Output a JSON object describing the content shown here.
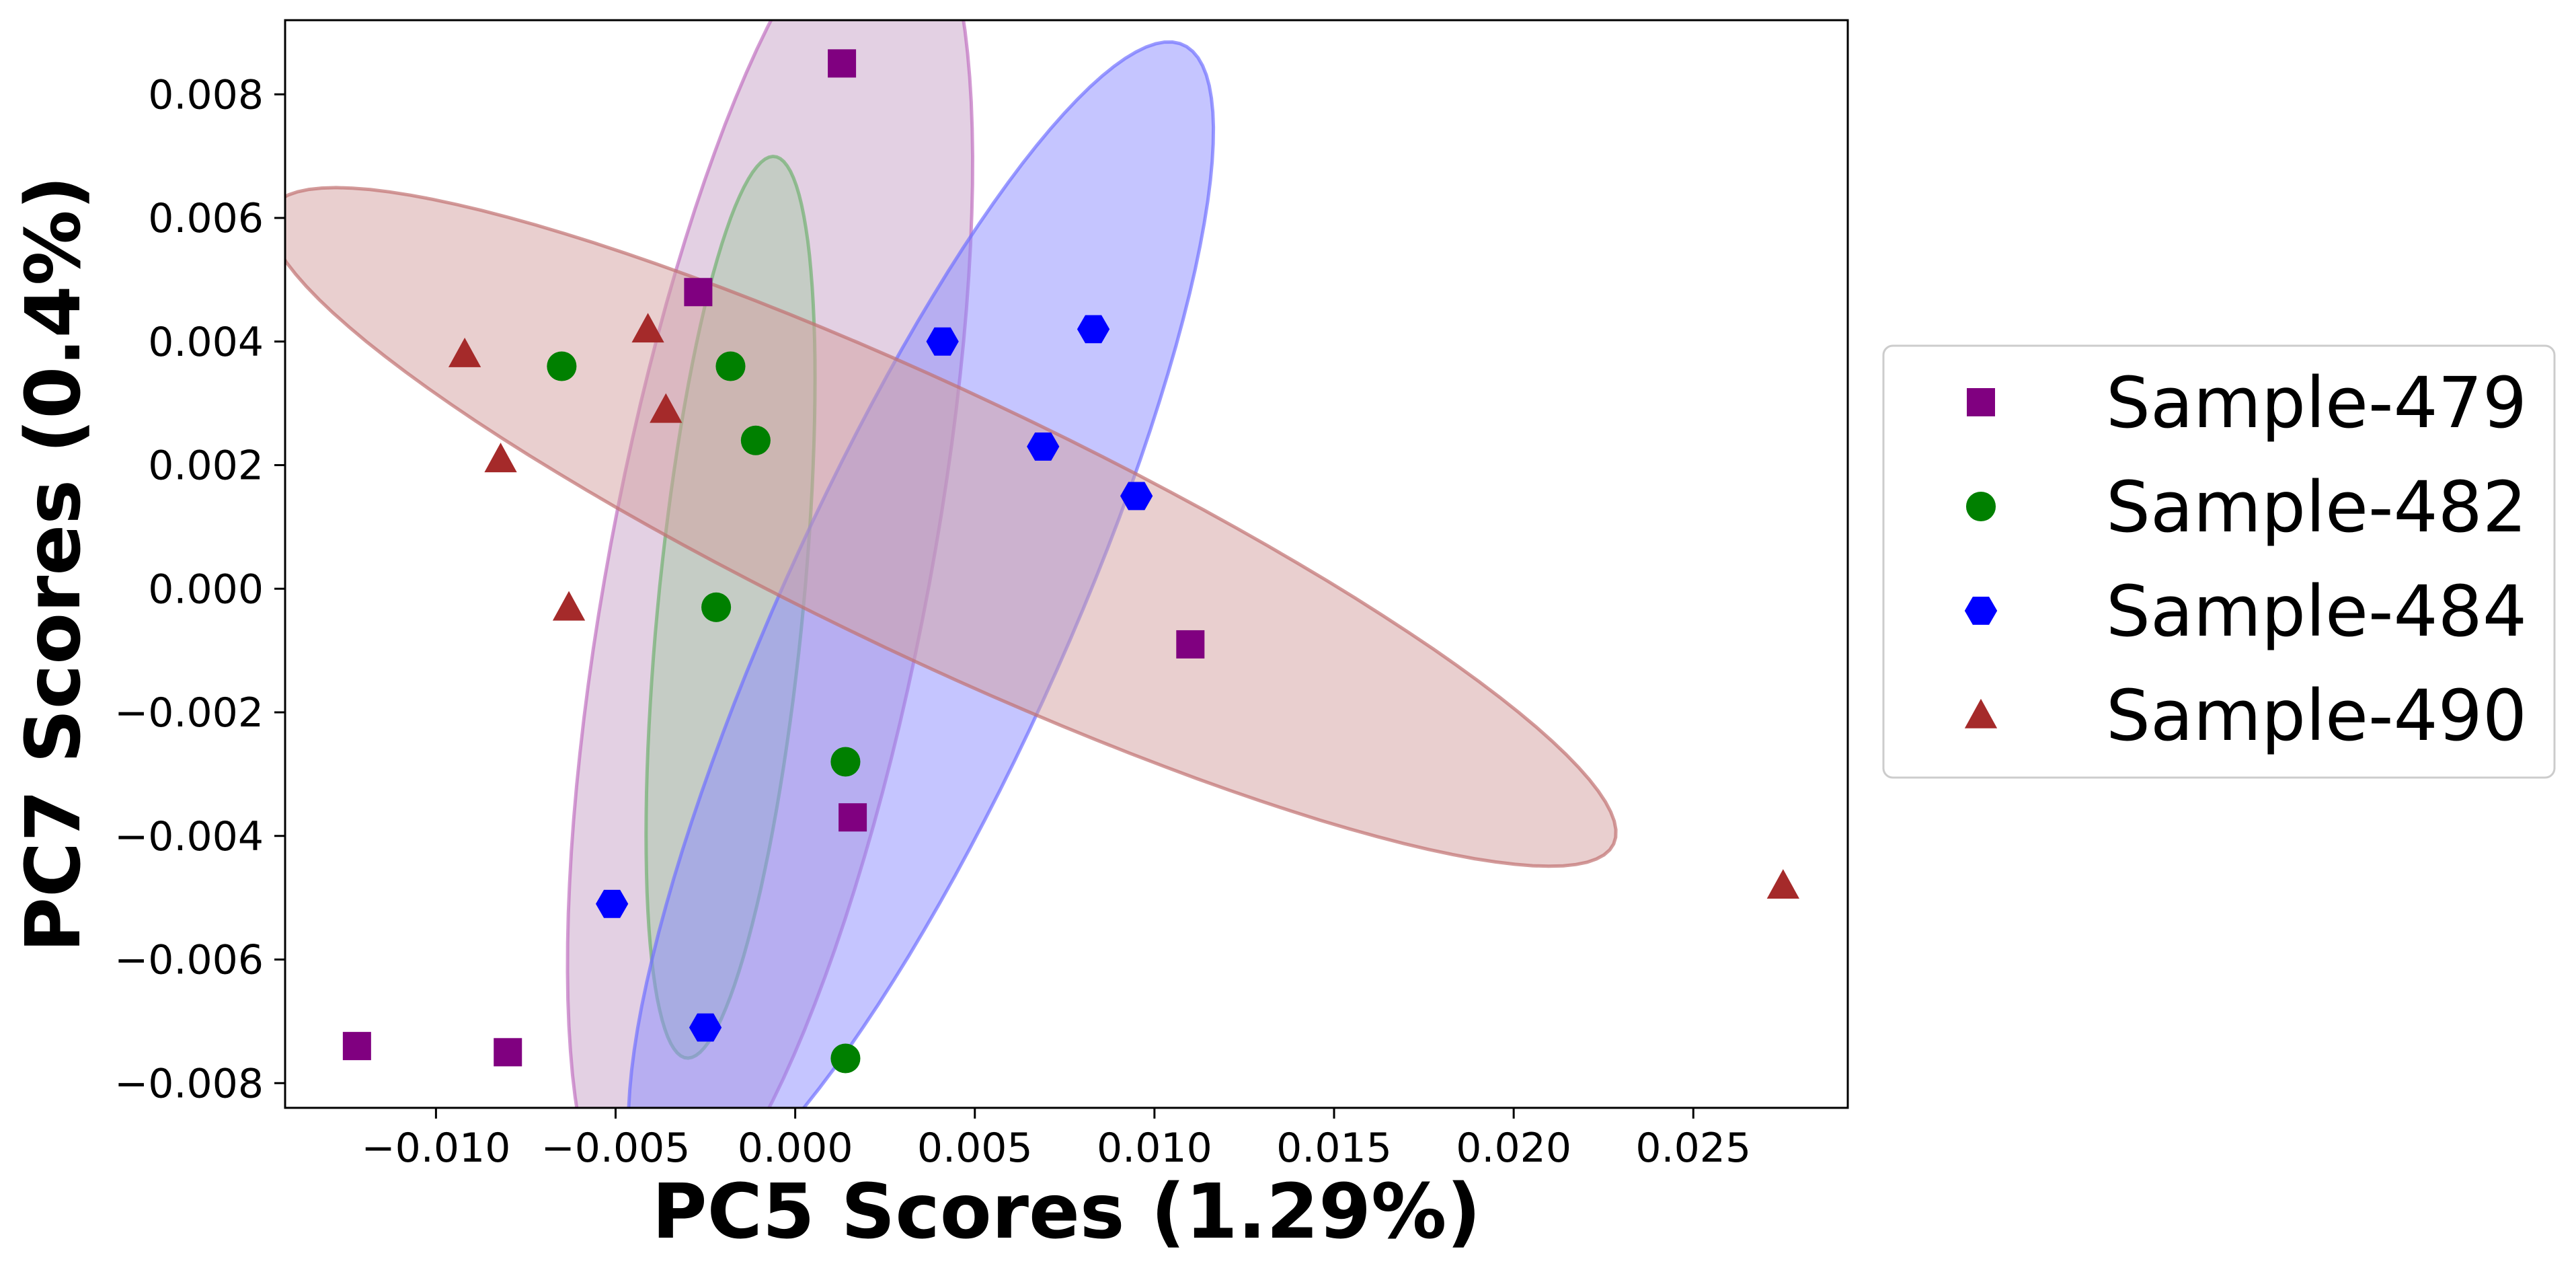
{
  "chart_data": {
    "type": "scatter",
    "title": "",
    "xlabel": "PC5 Scores (1.29%)",
    "ylabel": "PC7 Scores (0.4%)",
    "xlim": [
      -0.0142,
      0.0293
    ],
    "ylim": [
      -0.0084,
      0.0092
    ],
    "grid": false,
    "legend_position": "center-right, outside plot",
    "x_ticks": [
      -0.01,
      -0.005,
      0.0,
      0.005,
      0.01,
      0.015,
      0.02,
      0.025
    ],
    "x_tick_labels": [
      "−0.010",
      "−0.005",
      "0.000",
      "0.005",
      "0.010",
      "0.015",
      "0.020",
      "0.025"
    ],
    "y_ticks": [
      -0.008,
      -0.006,
      -0.004,
      -0.002,
      0.0,
      0.002,
      0.004,
      0.006,
      0.008
    ],
    "y_tick_labels": [
      "−0.008",
      "−0.006",
      "−0.004",
      "−0.002",
      "0.000",
      "0.002",
      "0.004",
      "0.006",
      "0.008"
    ],
    "series": [
      {
        "name": "Sample-479",
        "marker": "square",
        "color": "#800080",
        "points": [
          [
            0.0013,
            0.0085
          ],
          [
            -0.0027,
            0.0048
          ],
          [
            0.011,
            -0.0009
          ],
          [
            0.0016,
            -0.0037
          ],
          [
            -0.0122,
            -0.0074
          ],
          [
            -0.008,
            -0.0075
          ]
        ],
        "ellipse": {
          "cx": -0.0007,
          "cy": 0.0004,
          "a": 0.0115,
          "b": 0.0043,
          "angle": 70,
          "fill": "#c8a2c8",
          "stroke": "#c070c0"
        }
      },
      {
        "name": "Sample-482",
        "marker": "circle",
        "color": "#008000",
        "points": [
          [
            -0.0065,
            0.0036
          ],
          [
            -0.0018,
            0.0036
          ],
          [
            -0.0011,
            0.0024
          ],
          [
            -0.0022,
            -0.0003
          ],
          [
            0.0014,
            -0.0028
          ],
          [
            0.0014,
            -0.0076
          ]
        ],
        "ellipse": {
          "cx": -0.0018,
          "cy": -0.0003,
          "a": 0.0074,
          "b": 0.002,
          "angle": 80,
          "fill": "#a8c8a8",
          "stroke": "#70b070"
        }
      },
      {
        "name": "Sample-484",
        "marker": "hexagon",
        "color": "#0000ff",
        "points": [
          [
            0.0041,
            0.004
          ],
          [
            0.0083,
            0.0042
          ],
          [
            0.0069,
            0.0023
          ],
          [
            0.0095,
            0.0015
          ],
          [
            -0.0051,
            -0.0051
          ],
          [
            -0.0025,
            -0.0071
          ]
        ],
        "ellipse": {
          "cx": 0.0035,
          "cy": -0.0006,
          "a": 0.012,
          "b": 0.0034,
          "angle": 50,
          "fill": "#8c8cff",
          "stroke": "#7070ff"
        }
      },
      {
        "name": "Sample-490",
        "marker": "triangle",
        "color": "#a52a2a",
        "points": [
          [
            -0.0092,
            0.0038
          ],
          [
            -0.0041,
            0.0042
          ],
          [
            -0.0036,
            0.0029
          ],
          [
            -0.0082,
            0.0021
          ],
          [
            -0.0063,
            -0.0003
          ],
          [
            0.0275,
            -0.0048
          ]
        ],
        "ellipse": {
          "cx": 0.0041,
          "cy": 0.001,
          "a": 0.0194,
          "b": 0.0023,
          "angle": -15,
          "fill": "#d4a0a0",
          "stroke": "#c07070"
        }
      }
    ]
  }
}
